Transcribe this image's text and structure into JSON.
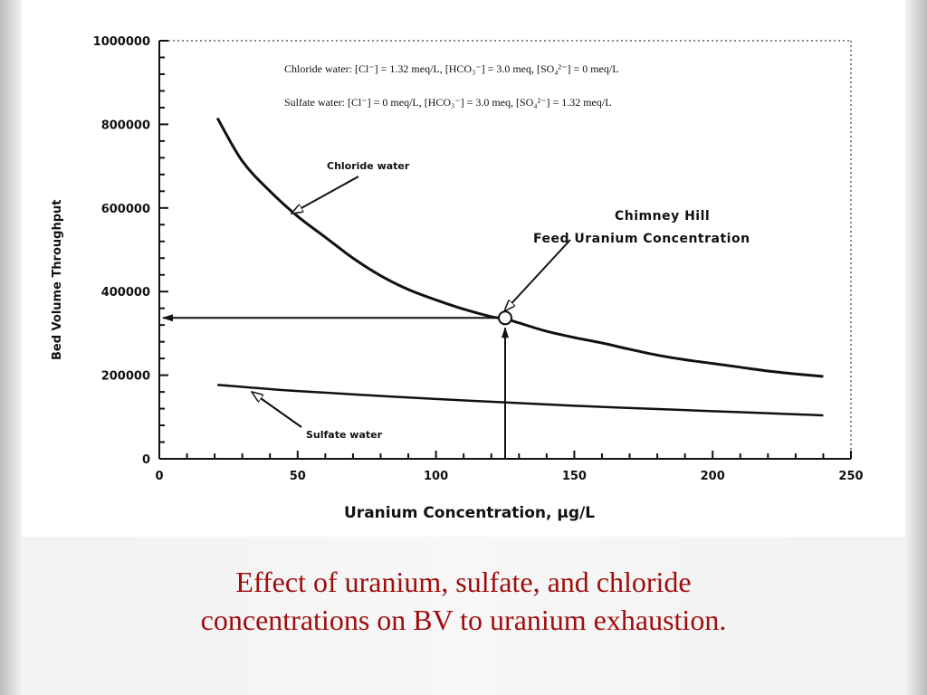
{
  "chart_data": {
    "type": "line",
    "xlabel": "Uranium   Concentration,     μg/L",
    "ylabel": "Bed  Volume  Throughput",
    "xlim": [
      0,
      250
    ],
    "ylim": [
      0,
      1000000
    ],
    "x_ticks": [
      "0",
      "50",
      "100",
      "150",
      "200",
      "250"
    ],
    "y_ticks": [
      "0",
      "200000",
      "400000",
      "600000",
      "800000",
      "1000000"
    ],
    "grid": false,
    "series": [
      {
        "name": "Chloride  water",
        "x": [
          21,
          30,
          40,
          50,
          60,
          70,
          80,
          90,
          100,
          110,
          120,
          125,
          130,
          140,
          150,
          160,
          170,
          180,
          190,
          200,
          210,
          220,
          230,
          240
        ],
        "y": [
          815000,
          712000,
          640000,
          580000,
          530000,
          480000,
          438000,
          405000,
          380000,
          358000,
          340000,
          335000,
          325000,
          305000,
          290000,
          277000,
          262000,
          248000,
          237000,
          228000,
          219000,
          210000,
          203000,
          197000
        ]
      },
      {
        "name": "Sulfate  water",
        "x": [
          21,
          50,
          100,
          150,
          200,
          240
        ],
        "y": [
          177000,
          162000,
          143000,
          127000,
          114000,
          104000
        ]
      }
    ],
    "annotations": {
      "legend_line1": "Chloride water:   [Cl⁻] = 1.32 meq/L,   [HCO₃⁻] = 3.0 meq,  [SO₄²⁻] = 0 meq/L",
      "legend_line2": "Sulfate water:     [Cl⁻] = 0 meq/L,         [HCO₃⁻] = 3.0 meq,  [SO₄²⁻] = 1.32  meq/L",
      "chloride_label": "Chloride  water",
      "sulfate_label": "Sulfate  water",
      "feed_title_line1": "Chimney  Hill",
      "feed_title_line2": "Feed  Uranium Concentration",
      "feed_point": {
        "x": 125,
        "y": 337000
      }
    }
  },
  "caption": {
    "line1": "Effect of uranium, sulfate, and chloride",
    "line2": "concentrations on BV to uranium exhaustion."
  },
  "colors": {
    "caption": "#a00d0d",
    "ink": "#111111",
    "panel": "#ffffff"
  }
}
